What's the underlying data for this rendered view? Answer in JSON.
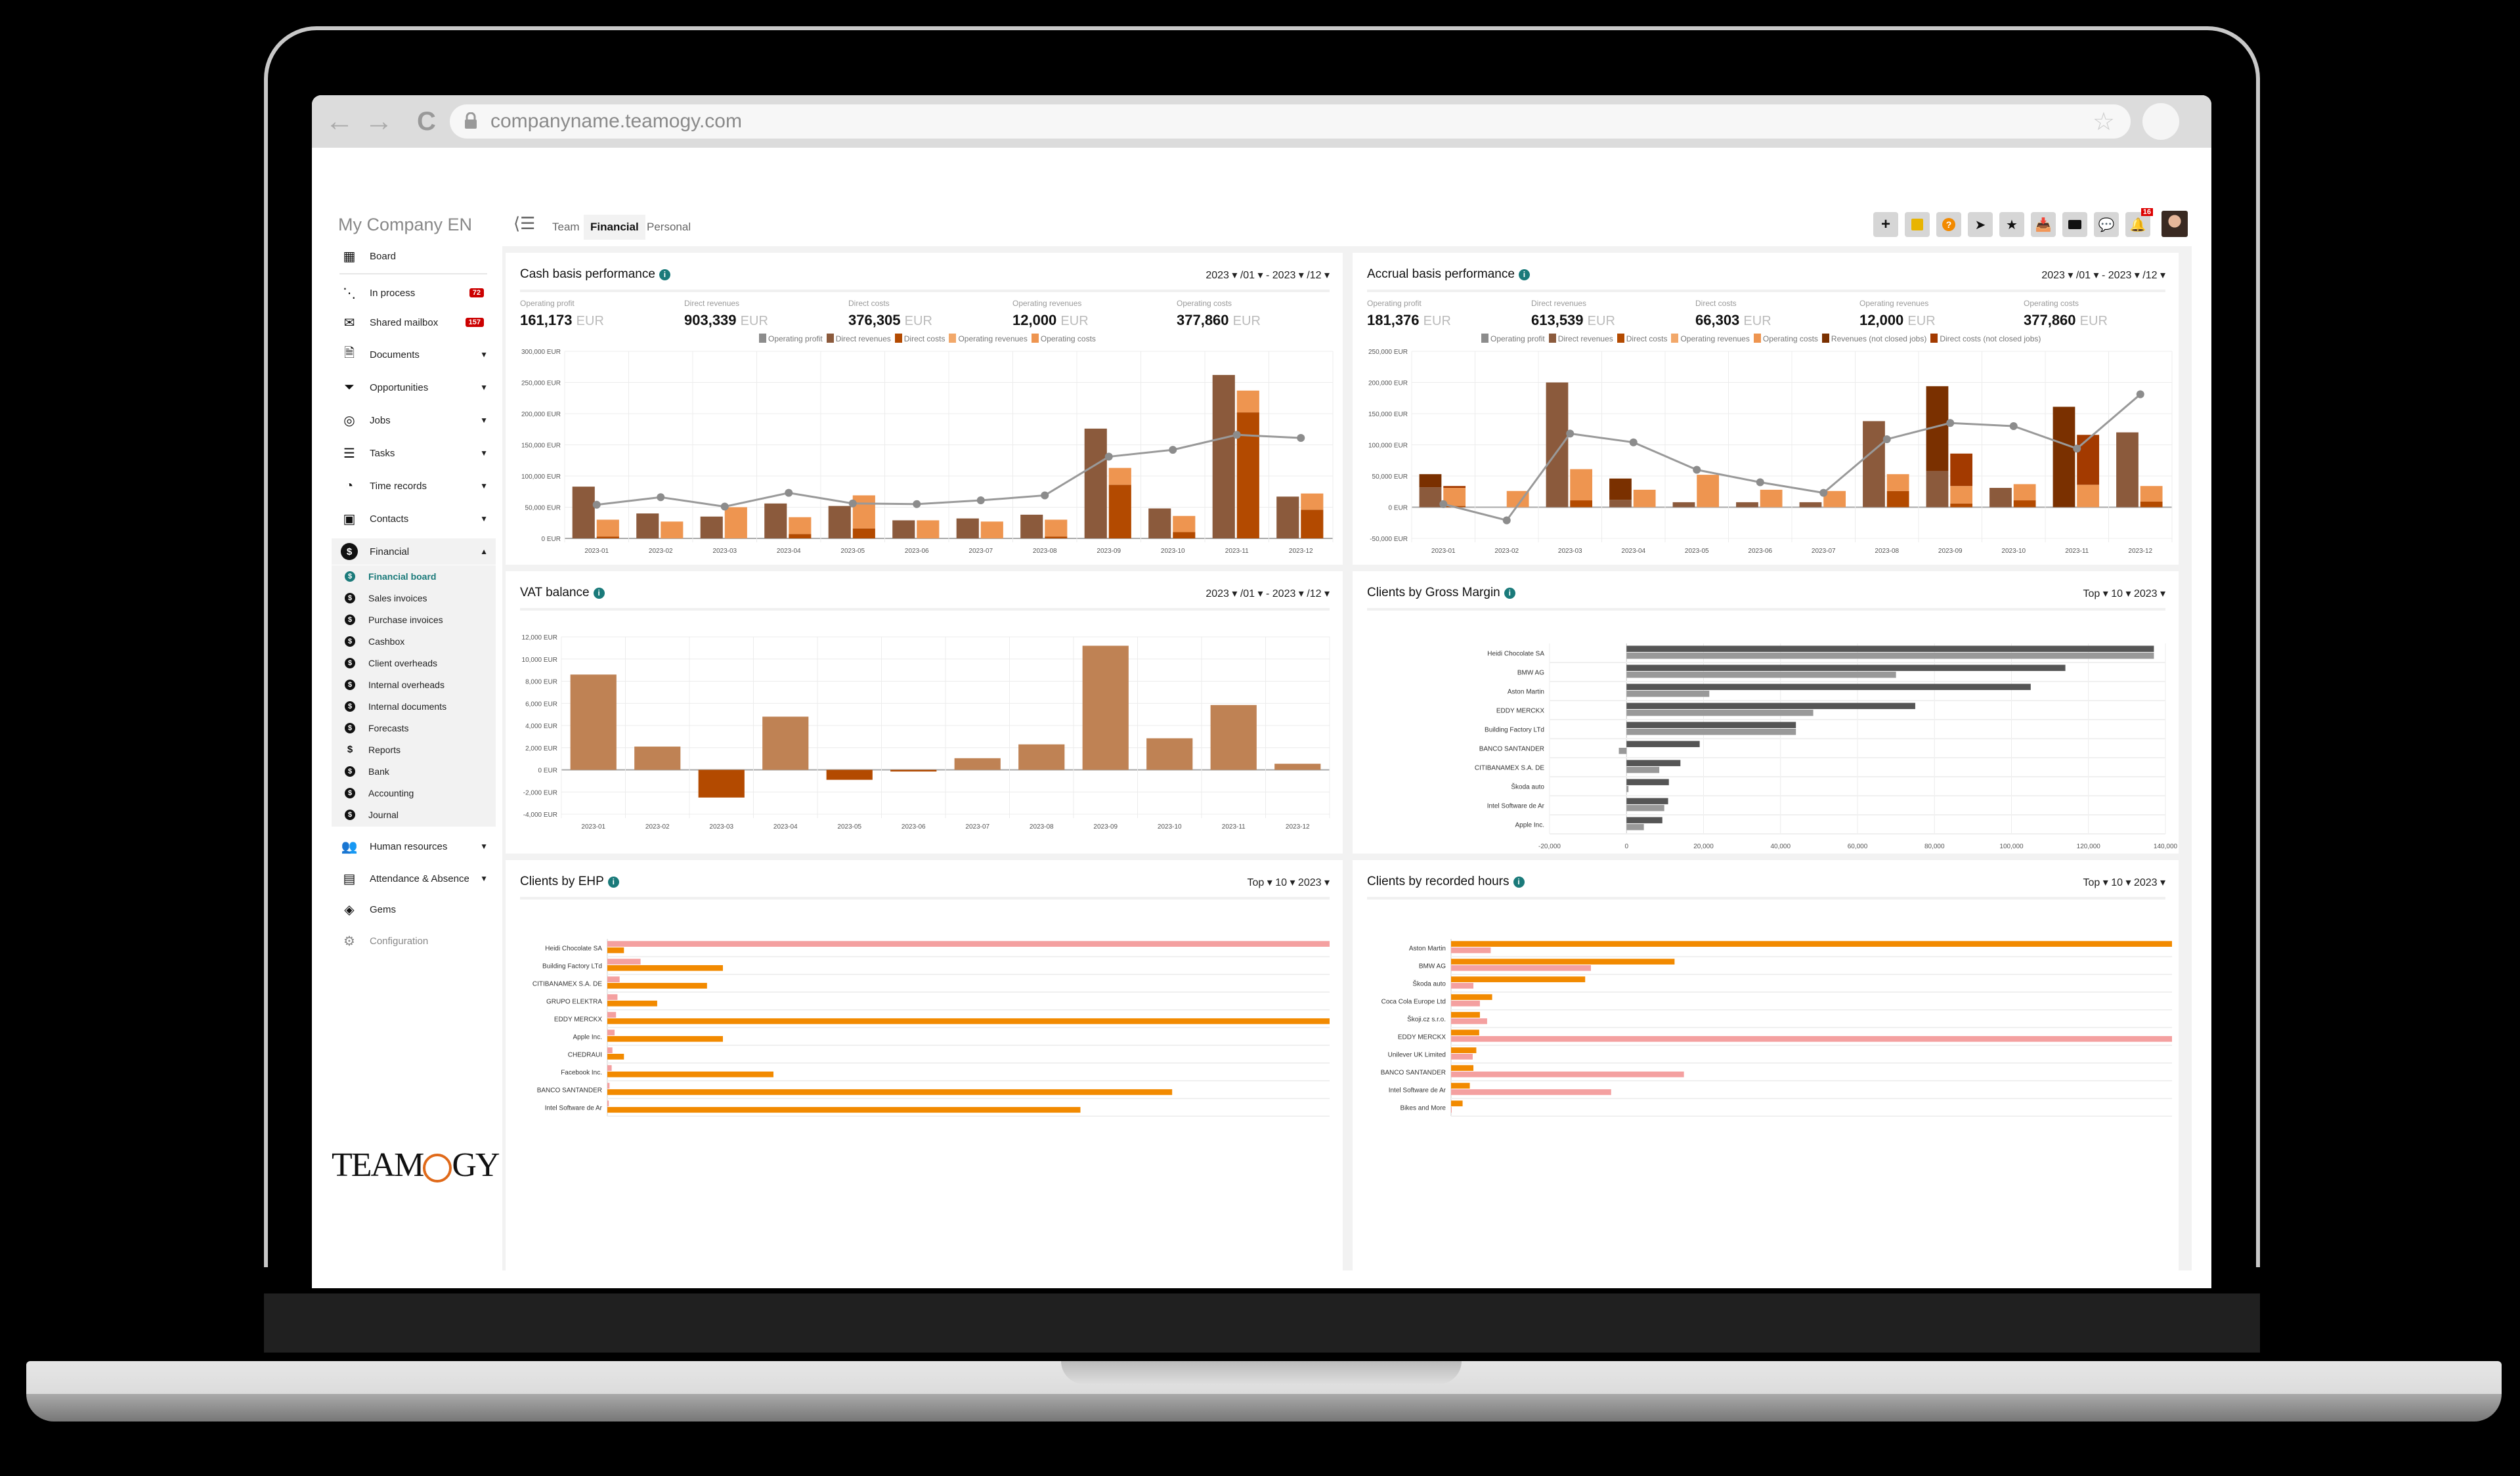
{
  "browser": {
    "url": "companyname.teamogy.com",
    "back_icon": "←",
    "forward_icon": "→",
    "reload_icon": "C",
    "bookmark_icon": "☆"
  },
  "app": {
    "company": "My Company EN",
    "tabs": [
      {
        "label": "Team",
        "active": false
      },
      {
        "label": "Financial",
        "active": true
      },
      {
        "label": "Personal",
        "active": false
      }
    ],
    "toolbar": {
      "icons": [
        "plus-icon",
        "sticky-note-icon",
        "help-icon",
        "send-icon",
        "star-icon",
        "inbox-icon",
        "video-icon",
        "chat-icon",
        "bell-icon"
      ],
      "notifications_count": "16"
    }
  },
  "sidebar": {
    "items": [
      {
        "label": "Board",
        "icon": "grid-icon"
      },
      {
        "label": "In process",
        "icon": "flow-icon",
        "badge": "72"
      },
      {
        "label": "Shared mailbox",
        "icon": "mail-icon",
        "badge": "157"
      },
      {
        "label": "Documents",
        "icon": "document-icon",
        "caret": "▼"
      },
      {
        "label": "Opportunities",
        "icon": "funnel-icon",
        "caret": "▼"
      },
      {
        "label": "Jobs",
        "icon": "target-icon",
        "caret": "▼"
      },
      {
        "label": "Tasks",
        "icon": "tasks-icon",
        "caret": "▼"
      },
      {
        "label": "Time records",
        "icon": "clock-icon",
        "caret": "▼"
      },
      {
        "label": "Contacts",
        "icon": "contact-book-icon",
        "caret": "▼"
      },
      {
        "label": "Financial",
        "icon": "dollar-icon",
        "caret": "▲"
      }
    ],
    "financial_sub": [
      {
        "label": "Financial board",
        "active": true
      },
      {
        "label": "Sales invoices"
      },
      {
        "label": "Purchase invoices"
      },
      {
        "label": "Cashbox"
      },
      {
        "label": "Client overheads"
      },
      {
        "label": "Internal overheads"
      },
      {
        "label": "Internal documents"
      },
      {
        "label": "Forecasts"
      },
      {
        "label": "Reports"
      },
      {
        "label": "Bank"
      },
      {
        "label": "Accounting"
      },
      {
        "label": "Journal"
      }
    ],
    "bottom_items": [
      {
        "label": "Human resources",
        "icon": "people-icon",
        "caret": "▼"
      },
      {
        "label": "Attendance & Absence",
        "icon": "building-icon",
        "caret": "▼"
      },
      {
        "label": "Gems",
        "icon": "gem-icon"
      },
      {
        "label": "Configuration",
        "icon": "gear-icon"
      }
    ],
    "logo": "TEAMOGY"
  },
  "panels": {
    "cash": {
      "title": "Cash basis performance",
      "range": "2023 ▾ /01 ▾ - 2023 ▾ /12 ▾",
      "kpis": [
        {
          "label": "Operating profit",
          "value": "161,173",
          "unit": "EUR"
        },
        {
          "label": "Direct revenues",
          "value": "903,339",
          "unit": "EUR"
        },
        {
          "label": "Direct costs",
          "value": "376,305",
          "unit": "EUR"
        },
        {
          "label": "Operating revenues",
          "value": "12,000",
          "unit": "EUR"
        },
        {
          "label": "Operating costs",
          "value": "377,860",
          "unit": "EUR"
        }
      ]
    },
    "accrual": {
      "title": "Accrual basis performance",
      "range": "2023 ▾ /01 ▾ - 2023 ▾ /12 ▾",
      "kpis": [
        {
          "label": "Operating profit",
          "value": "181,376",
          "unit": "EUR"
        },
        {
          "label": "Direct revenues",
          "value": "613,539",
          "unit": "EUR"
        },
        {
          "label": "Direct costs",
          "value": "66,303",
          "unit": "EUR"
        },
        {
          "label": "Operating revenues",
          "value": "12,000",
          "unit": "EUR"
        },
        {
          "label": "Operating costs",
          "value": "377,860",
          "unit": "EUR"
        }
      ]
    },
    "vat": {
      "title": "VAT balance",
      "range": "2023 ▾ /01 ▾ - 2023 ▾ /12 ▾"
    },
    "gross_margin": {
      "title": "Clients by Gross Margin",
      "range": "Top ▾ 10 ▾ 2023 ▾"
    },
    "ehp": {
      "title": "Clients by EHP",
      "range": "Top ▾ 10 ▾ 2023 ▾"
    },
    "hours": {
      "title": "Clients by recorded hours",
      "range": "Top ▾ 10 ▾ 2023 ▾"
    }
  },
  "colors": {
    "profit": "#8c8c8c",
    "direct_revenues": "#8b5a3c",
    "direct_costs": "#b34a00",
    "operating_revenues": "#f2a86a",
    "operating_costs": "#ee9550",
    "not_closed_revenues": "#7a3000",
    "not_closed_costs": "#a33a00",
    "vat_pos": "#bf8254",
    "vat_neg": "#b34a00",
    "gm_dark": "#555555",
    "gm_light": "#999999",
    "ehp_pink": "#f4a0a0",
    "ehp_orange": "#f28a00",
    "accent": "#1a7a7a"
  },
  "chart_data": [
    {
      "id": "cash",
      "type": "bar",
      "title": "Cash basis performance",
      "categories": [
        "2023-01",
        "2023-02",
        "2023-03",
        "2023-04",
        "2023-05",
        "2023-06",
        "2023-07",
        "2023-08",
        "2023-09",
        "2023-10",
        "2023-11",
        "2023-12"
      ],
      "yticks": [
        "0 EUR",
        "50,000 EUR",
        "100,000 EUR",
        "150,000 EUR",
        "200,000 EUR",
        "250,000 EUR",
        "300,000 EUR"
      ],
      "ylim": [
        0,
        300000
      ],
      "legend": [
        "Operating profit",
        "Direct revenues",
        "Direct costs",
        "Operating revenues",
        "Operating costs"
      ],
      "series": [
        {
          "name": "Direct revenues",
          "values": [
            83000,
            40000,
            35000,
            56000,
            52000,
            29000,
            32000,
            38000,
            176000,
            48000,
            262000,
            67000
          ]
        },
        {
          "name": "Direct costs",
          "values": [
            3000,
            0,
            0,
            7000,
            16000,
            0,
            0,
            3000,
            86000,
            10000,
            202000,
            46000
          ]
        },
        {
          "name": "Operating costs",
          "values": [
            27000,
            27000,
            50000,
            27000,
            53000,
            29000,
            27000,
            27000,
            27000,
            26000,
            35000,
            26000
          ]
        },
        {
          "name": "Operating profit",
          "values": [
            54000,
            66000,
            51000,
            73000,
            56000,
            55000,
            61000,
            69000,
            131000,
            142000,
            166000,
            161000
          ]
        }
      ]
    },
    {
      "id": "accrual",
      "type": "bar",
      "title": "Accrual basis performance",
      "categories": [
        "2023-01",
        "2023-02",
        "2023-03",
        "2023-04",
        "2023-05",
        "2023-06",
        "2023-07",
        "2023-08",
        "2023-09",
        "2023-10",
        "2023-11",
        "2023-12"
      ],
      "yticks": [
        "-50,000 EUR",
        "0 EUR",
        "50,000 EUR",
        "100,000 EUR",
        "150,000 EUR",
        "200,000 EUR",
        "250,000 EUR"
      ],
      "ylim": [
        -50000,
        250000
      ],
      "legend": [
        "Operating profit",
        "Direct revenues",
        "Direct costs",
        "Operating revenues",
        "Operating costs",
        "Revenues (not closed jobs)",
        "Direct costs (not closed jobs)"
      ],
      "series": [
        {
          "name": "Direct revenues",
          "values": [
            32000,
            0,
            200000,
            12000,
            8000,
            8000,
            8000,
            138000,
            58000,
            31000,
            0,
            120000
          ]
        },
        {
          "name": "Revenues (not closed jobs)",
          "values": [
            21000,
            0,
            0,
            34000,
            0,
            0,
            0,
            0,
            136000,
            0,
            161000,
            0
          ]
        },
        {
          "name": "Direct costs",
          "values": [
            2000,
            0,
            11000,
            0,
            0,
            0,
            0,
            26000,
            6000,
            11000,
            0,
            9000
          ]
        },
        {
          "name": "Direct costs (not closed jobs)",
          "values": [
            3000,
            0,
            0,
            0,
            0,
            0,
            0,
            0,
            52000,
            0,
            80000,
            0
          ]
        },
        {
          "name": "Operating costs",
          "values": [
            29000,
            26000,
            50000,
            28000,
            52000,
            28000,
            26000,
            27000,
            28000,
            26000,
            36000,
            25000
          ]
        },
        {
          "name": "Operating profit",
          "values": [
            5000,
            -21000,
            118000,
            104000,
            60000,
            40000,
            23000,
            109000,
            135000,
            130000,
            94000,
            181000
          ]
        }
      ]
    },
    {
      "id": "vat",
      "type": "bar",
      "title": "VAT balance",
      "categories": [
        "2023-01",
        "2023-02",
        "2023-03",
        "2023-04",
        "2023-05",
        "2023-06",
        "2023-07",
        "2023-08",
        "2023-09",
        "2023-10",
        "2023-11",
        "2023-12"
      ],
      "values": [
        8600,
        2100,
        -2500,
        4800,
        -900,
        -150,
        1050,
        2300,
        11200,
        2850,
        5850,
        550
      ],
      "yticks": [
        "-4,000 EUR",
        "-2,000 EUR",
        "0 EUR",
        "2,000 EUR",
        "4,000 EUR",
        "6,000 EUR",
        "8,000 EUR",
        "10,000 EUR",
        "12,000 EUR"
      ],
      "ylim": [
        -4000,
        12000
      ]
    },
    {
      "id": "gross_margin",
      "type": "bar",
      "orientation": "horizontal",
      "title": "Clients by Gross Margin",
      "categories": [
        "Heidi Chocolate SA",
        "BMW AG",
        "Aston Martin",
        "EDDY MERCKX",
        "Building Factory LTd",
        "BANCO SANTANDER",
        "CITIBANAMEX S.A. DE",
        "Škoda auto",
        "Intel Software de Ar",
        "Apple Inc."
      ],
      "series": [
        {
          "name": "dark",
          "values": [
            137000,
            114000,
            105000,
            75000,
            44000,
            19000,
            14000,
            11000,
            10800,
            9300
          ]
        },
        {
          "name": "light",
          "values": [
            137000,
            70000,
            21500,
            48500,
            44000,
            -2000,
            8500,
            500,
            9800,
            4500
          ]
        }
      ],
      "xticks": [
        "-20,000",
        "0",
        "20,000",
        "40,000",
        "60,000",
        "80,000",
        "100,000",
        "120,000",
        "140,000"
      ],
      "xlim": [
        -20000,
        140000
      ]
    },
    {
      "id": "ehp",
      "type": "bar",
      "orientation": "horizontal",
      "title": "Clients by EHP",
      "categories": [
        "Heidi Chocolate SA",
        "Building Factory LTd",
        "CITIBANAMEX S.A. DE",
        "GRUPO ELEKTRA",
        "EDDY MERCKX",
        "Apple Inc.",
        "CHEDRAUI",
        "Facebook Inc.",
        "BANCO SANTANDER",
        "Intel Software de Ar"
      ],
      "series": [
        {
          "name": "pink",
          "values": [
            100,
            4.6,
            1.7,
            1.4,
            1.2,
            1.0,
            0.7,
            0.6,
            0.3,
            0.2
          ]
        },
        {
          "name": "orange",
          "values": [
            2.3,
            16,
            13.8,
            6.9,
            100,
            16,
            2.3,
            23,
            78.2,
            65.5
          ]
        }
      ],
      "xticks": [
        "0",
        "0"
      ]
    },
    {
      "id": "hours",
      "type": "bar",
      "orientation": "horizontal",
      "title": "Clients by recorded hours",
      "categories": [
        "Aston Martin",
        "BMW AG",
        "Škoda auto",
        "Coca Cola Europe Ltd",
        "Škoji.cz s.r.o.",
        "EDDY MERCKX",
        "Unilever UK Limited",
        "BANCO SANTANDER",
        "Intel Software de Ar",
        "Bikes and More"
      ],
      "series": [
        {
          "name": "orange",
          "values": [
            100,
            31,
            18.6,
            5.7,
            4,
            3.9,
            3.5,
            3.1,
            2.6,
            1.6
          ]
        },
        {
          "name": "pink",
          "values": [
            5.5,
            19.4,
            3.1,
            4,
            5,
            100,
            3,
            32.3,
            22.2,
            0
          ]
        }
      ],
      "xticks": [
        "0",
        "0"
      ]
    }
  ]
}
